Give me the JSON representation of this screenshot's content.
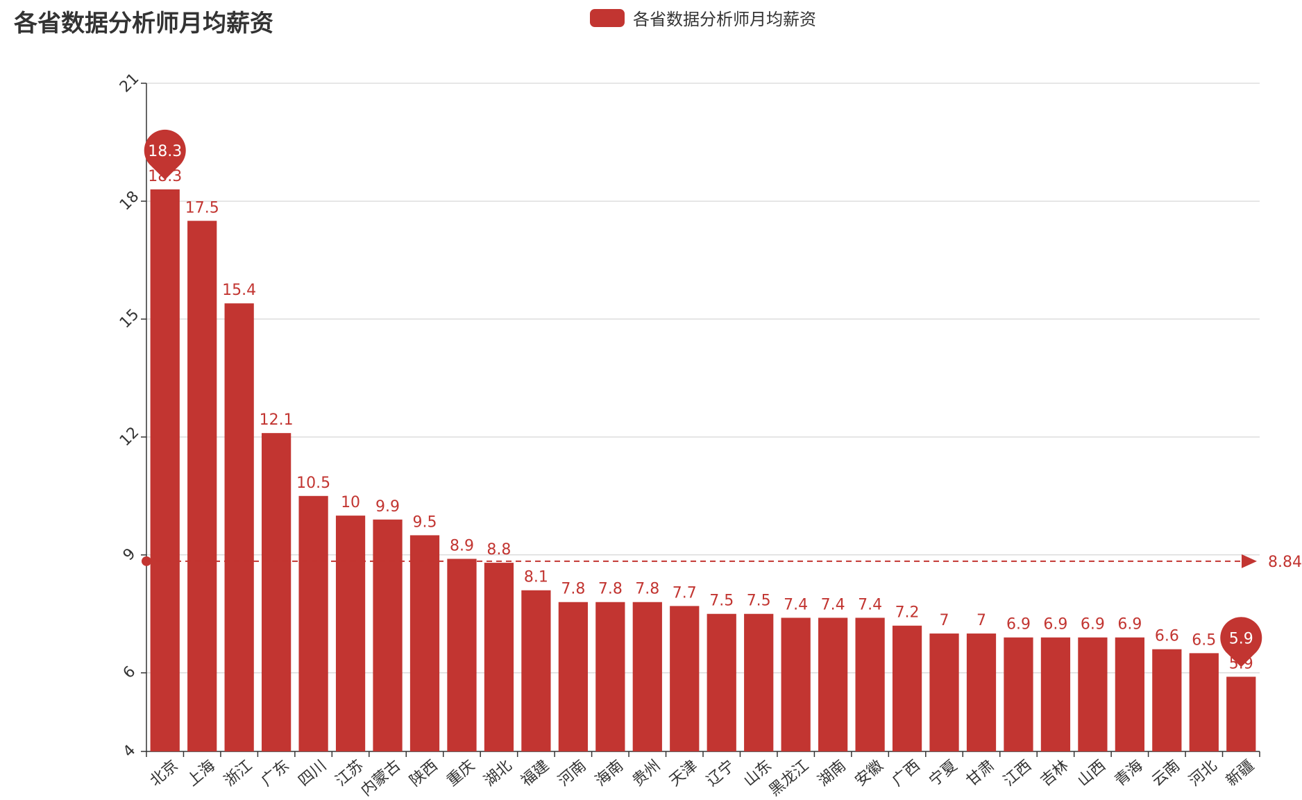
{
  "chart_data": {
    "type": "bar",
    "title": "各省数据分析师月均薪资",
    "legend": [
      "各省数据分析师月均薪资"
    ],
    "legend_position": "top-center",
    "series_name": "各省数据分析师月均薪资",
    "categories": [
      "北京",
      "上海",
      "浙江",
      "广东",
      "四川",
      "江苏",
      "内蒙古",
      "陕西",
      "重庆",
      "湖北",
      "福建",
      "河南",
      "海南",
      "贵州",
      "天津",
      "辽宁",
      "山东",
      "黑龙江",
      "湖南",
      "安徽",
      "广西",
      "宁夏",
      "甘肃",
      "江西",
      "吉林",
      "山西",
      "青海",
      "云南",
      "河北",
      "新疆"
    ],
    "values": [
      18.3,
      17.5,
      15.4,
      12.1,
      10.5,
      10,
      9.9,
      9.5,
      8.9,
      8.8,
      8.1,
      7.8,
      7.8,
      7.8,
      7.7,
      7.5,
      7.5,
      7.4,
      7.4,
      7.4,
      7.2,
      7,
      7,
      6.9,
      6.9,
      6.9,
      6.9,
      6.6,
      6.5,
      5.9
    ],
    "value_labels": [
      "18.3",
      "17.5",
      "15.4",
      "12.1",
      "10.5",
      "10",
      "9.9",
      "9.5",
      "8.9",
      "8.8",
      "8.1",
      "7.8",
      "7.8",
      "7.8",
      "7.7",
      "7.5",
      "7.5",
      "7.4",
      "7.4",
      "7.4",
      "7.2",
      "7",
      "7",
      "6.9",
      "6.9",
      "6.9",
      "6.9",
      "6.6",
      "6.5",
      "5.9"
    ],
    "ylim": [
      4,
      21
    ],
    "yticks": [
      4,
      6,
      9,
      12,
      15,
      18,
      21
    ],
    "ytick_labels": [
      "4",
      "6",
      "9",
      "12",
      "15",
      "18",
      "21"
    ],
    "grid": true,
    "mark_points": [
      {
        "name": "max",
        "value": 18.3,
        "label": "18.3",
        "category": "北京"
      },
      {
        "name": "min",
        "value": 5.9,
        "label": "5.9",
        "category": "新疆"
      }
    ],
    "mark_line": {
      "type": "average",
      "value": 8.84,
      "label": "8.84"
    },
    "colors": {
      "bar": "#c23531",
      "grid": "#cccccc",
      "axis": "#333333",
      "text": "#333333"
    }
  }
}
